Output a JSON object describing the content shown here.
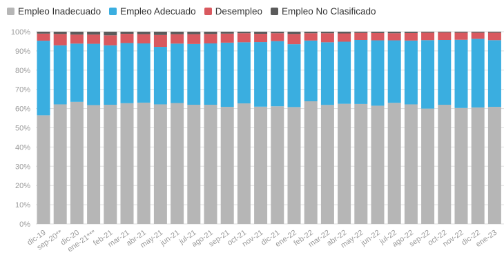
{
  "colors": {
    "inadecuado": "#b6b6b6",
    "adecuado": "#3aaee0",
    "desempleo": "#d9595f",
    "no_clasificado": "#5b5b5b"
  },
  "legend": [
    {
      "label": "Empleo Inadecuado",
      "color": "#b6b6b6"
    },
    {
      "label": "Empleo Adecuado",
      "color": "#3aaee0"
    },
    {
      "label": "Desempleo",
      "color": "#d9595f"
    },
    {
      "label": "Empleo No Clasificado",
      "color": "#5b5b5b"
    }
  ],
  "chart_data": {
    "type": "bar",
    "stacked": true,
    "title": "",
    "xlabel": "",
    "ylabel": "",
    "ylim": [
      0,
      100
    ],
    "y_ticks": [
      "0%",
      "10%",
      "20%",
      "30%",
      "40%",
      "50%",
      "60%",
      "70%",
      "80%",
      "90%",
      "100%"
    ],
    "grid": "horizontal",
    "legend_position": "top-left",
    "categories": [
      "dic-19",
      "sep-20**",
      "dic-20",
      "ene-21***",
      "feb-21",
      "mar-21",
      "abr-21",
      "may-21",
      "jun-21",
      "jul-21",
      "ago-21",
      "sep-21",
      "oct-21",
      "nov-21",
      "dic-21",
      "ene-22",
      "feb-22",
      "mar-22",
      "abr-22",
      "may-22",
      "jun-22",
      "jul-22",
      "ago-22",
      "sep-22",
      "oct-22",
      "nov-22",
      "dic-22",
      "ene-23"
    ],
    "series": [
      {
        "name": "Empleo Inadecuado",
        "values": [
          56.5,
          62.2,
          63.5,
          61.8,
          62.0,
          62.8,
          63.1,
          62.2,
          62.9,
          62.0,
          62.0,
          60.9,
          62.7,
          61.0,
          61.2,
          60.8,
          63.8,
          61.9,
          62.5,
          62.4,
          61.5,
          63.0,
          62.2,
          60.0,
          62.0,
          60.3,
          60.6,
          60.9
        ]
      },
      {
        "name": "Empleo Adecuado",
        "values": [
          38.8,
          30.7,
          30.3,
          31.9,
          30.9,
          31.3,
          30.8,
          29.9,
          30.9,
          31.6,
          31.9,
          33.4,
          31.8,
          33.6,
          33.9,
          32.7,
          31.6,
          32.6,
          32.3,
          33.3,
          34.0,
          32.5,
          33.2,
          35.6,
          33.7,
          35.5,
          35.7,
          34.7
        ]
      },
      {
        "name": "Desempleo",
        "values": [
          3.7,
          5.9,
          4.7,
          4.8,
          5.2,
          4.8,
          4.8,
          6.2,
          4.9,
          5.1,
          4.9,
          4.7,
          4.7,
          4.3,
          4.1,
          5.3,
          3.8,
          4.7,
          4.3,
          3.7,
          3.8,
          3.7,
          3.9,
          3.9,
          3.9,
          3.7,
          3.2,
          3.9
        ]
      },
      {
        "name": "Empleo No Clasificado",
        "values": [
          1.0,
          1.2,
          1.5,
          1.5,
          1.9,
          1.1,
          1.3,
          1.7,
          1.3,
          1.3,
          1.2,
          1.0,
          0.8,
          1.1,
          0.8,
          1.2,
          0.8,
          0.8,
          0.9,
          0.6,
          0.7,
          0.8,
          0.7,
          0.5,
          0.4,
          0.5,
          0.5,
          0.5
        ]
      }
    ]
  }
}
